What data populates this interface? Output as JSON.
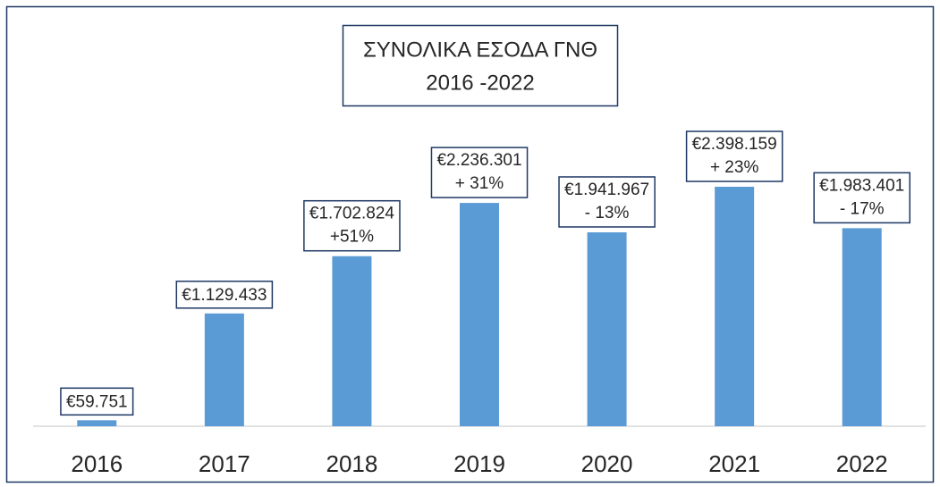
{
  "chart_data": {
    "type": "bar",
    "title_lines": [
      "ΣΥΝΟΛΙΚΑ ΕΣΟΔΑ ΓΝΘ",
      "2016 -2022"
    ],
    "categories": [
      "2016",
      "2017",
      "2018",
      "2019",
      "2020",
      "2021",
      "2022"
    ],
    "values": [
      59751,
      1129433,
      1702824,
      2236301,
      1941967,
      2398159,
      1983401
    ],
    "value_labels": [
      "€59.751",
      "€1.129.433",
      "€1.702.824",
      "€2.236.301",
      "€1.941.967",
      "€2.398.159",
      "€1.983.401"
    ],
    "change_labels": [
      null,
      null,
      "+51%",
      "+ 31%",
      "- 13%",
      "+ 23%",
      "- 17%"
    ],
    "color": "#5b9bd5",
    "ylim": [
      0,
      4000000
    ]
  }
}
